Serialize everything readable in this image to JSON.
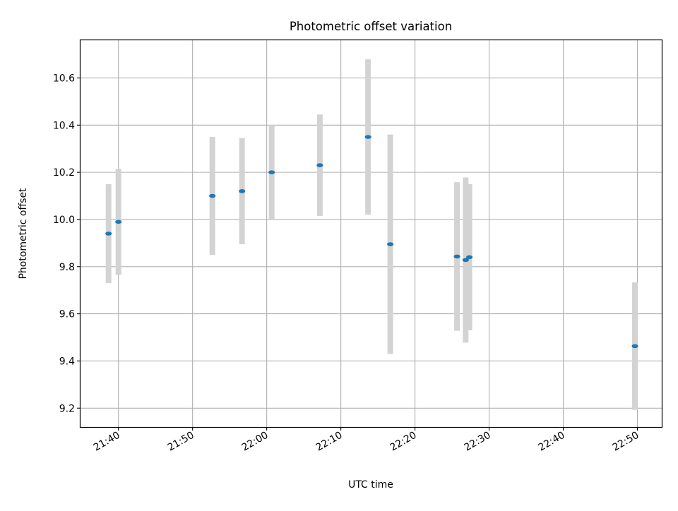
{
  "colors": {
    "marker": "#1f77b4",
    "error_bar": "#d3d3d3",
    "grid": "#b0b0b0",
    "axes": "#000000",
    "background": "#ffffff"
  },
  "chart_data": {
    "type": "scatter",
    "title": "Photometric offset variation",
    "xlabel": "UTC time",
    "ylabel": "Photometric offset",
    "grid": true,
    "x_ticks": [
      "21:40",
      "21:50",
      "22:00",
      "22:10",
      "22:20",
      "22:30",
      "22:40",
      "22:50"
    ],
    "y_ticks": [
      "9.2",
      "9.4",
      "9.6",
      "9.8",
      "10.0",
      "10.2",
      "10.4",
      "10.6"
    ],
    "xlim": [
      "21:34:53",
      "22:53:17"
    ],
    "ylim": [
      9.12,
      10.76
    ],
    "series": [
      {
        "marker": "dot",
        "error_bars": true,
        "points": [
          {
            "x": "21:38:40",
            "y": 9.94,
            "err": 0.21
          },
          {
            "x": "21:40:00",
            "y": 9.99,
            "err": 0.225
          },
          {
            "x": "21:52:40",
            "y": 10.1,
            "err": 0.25
          },
          {
            "x": "21:56:40",
            "y": 10.12,
            "err": 0.225
          },
          {
            "x": "22:00:40",
            "y": 10.2,
            "err": 0.2
          },
          {
            "x": "22:07:10",
            "y": 10.23,
            "err": 0.215
          },
          {
            "x": "22:13:40",
            "y": 10.35,
            "err": 0.33
          },
          {
            "x": "22:16:40",
            "y": 9.895,
            "err": 0.465
          },
          {
            "x": "22:25:40",
            "y": 9.843,
            "err": 0.315
          },
          {
            "x": "22:26:50",
            "y": 9.828,
            "err": 0.35
          },
          {
            "x": "22:27:20",
            "y": 9.84,
            "err": 0.31
          },
          {
            "x": "22:49:40",
            "y": 9.463,
            "err": 0.27
          }
        ]
      }
    ]
  }
}
